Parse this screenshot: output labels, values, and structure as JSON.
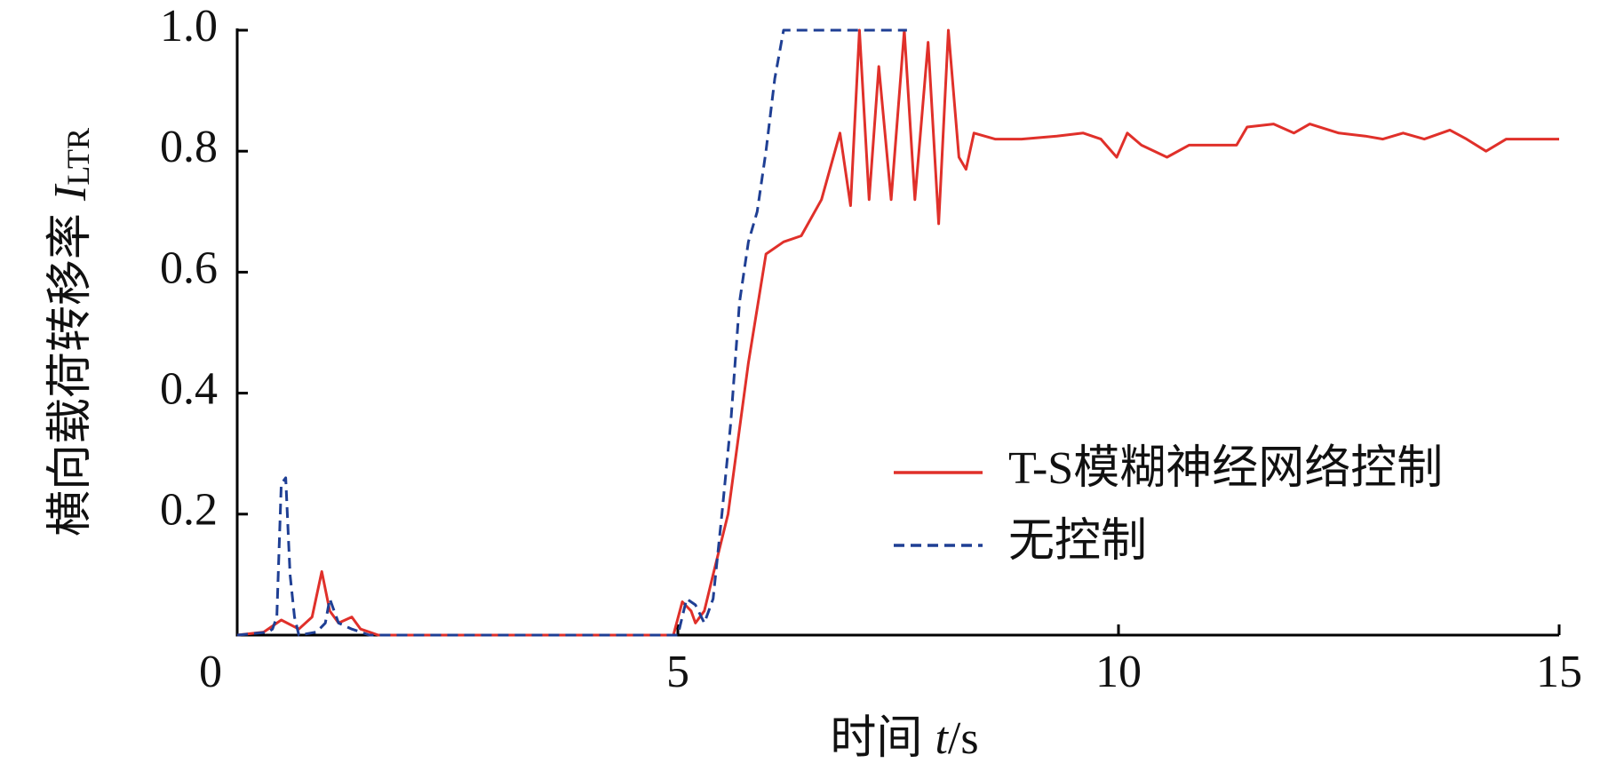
{
  "chart_data": {
    "type": "line",
    "ylabel": "横向载荷转移率",
    "ylabel_symbol": "I",
    "ylabel_subscript": "LTR",
    "xlabel": "时间",
    "xlabel_symbol": "t",
    "xlabel_unit": "/s",
    "xlim": [
      0,
      15
    ],
    "ylim": [
      0,
      1
    ],
    "xticks": [
      0,
      5,
      10,
      15
    ],
    "yticks": [
      0.2,
      0.4,
      0.6,
      0.8,
      {
        "value": 1,
        "label": "1.0"
      }
    ],
    "legend": "lower right",
    "series": [
      {
        "name": "T-S模糊神经网络控制",
        "color": "#e0302a",
        "dash": "solid",
        "x": [
          0,
          0.3,
          0.5,
          0.7,
          0.85,
          0.96,
          1.05,
          1.15,
          1.3,
          1.4,
          1.5,
          1.6,
          2,
          3,
          4,
          4.95,
          5.05,
          5.15,
          5.2,
          5.3,
          5.4,
          5.57,
          5.8,
          6.0,
          6.2,
          6.4,
          6.63,
          6.84,
          6.96,
          7.06,
          7.17,
          7.28,
          7.42,
          7.57,
          7.69,
          7.84,
          7.96,
          8.07,
          8.19,
          8.27,
          8.36,
          8.6,
          8.9,
          9.3,
          9.6,
          9.8,
          9.98,
          10.1,
          10.26,
          10.55,
          10.8,
          11.0,
          11.34,
          11.46,
          11.76,
          11.99,
          12.17,
          12.5,
          12.8,
          13.0,
          13.23,
          13.47,
          13.76,
          13.95,
          14.17,
          14.4,
          14.7,
          15
        ],
        "values": [
          0,
          0.005,
          0.025,
          0.01,
          0.03,
          0.105,
          0.04,
          0.02,
          0.03,
          0.01,
          0.005,
          0,
          0,
          0,
          0,
          0,
          0.055,
          0.04,
          0.02,
          0.04,
          0.1,
          0.2,
          0.45,
          0.63,
          0.65,
          0.66,
          0.72,
          0.83,
          0.71,
          1.0,
          0.72,
          0.94,
          0.72,
          1.0,
          0.72,
          0.98,
          0.68,
          1.0,
          0.79,
          0.77,
          0.83,
          0.82,
          0.82,
          0.825,
          0.83,
          0.82,
          0.79,
          0.83,
          0.81,
          0.79,
          0.81,
          0.81,
          0.81,
          0.84,
          0.845,
          0.83,
          0.845,
          0.83,
          0.825,
          0.82,
          0.83,
          0.82,
          0.835,
          0.82,
          0.8,
          0.82,
          0.82,
          0.82
        ]
      },
      {
        "name": "无控制",
        "color": "#1f3f94",
        "dash": "dashed",
        "x": [
          0,
          0.35,
          0.4,
          0.45,
          0.5,
          0.55,
          0.6,
          0.65,
          0.7,
          0.9,
          1.0,
          1.05,
          1.1,
          1.15,
          1.3,
          1.5,
          5.0,
          5.1,
          5.2,
          5.3,
          5.4,
          5.5,
          5.6,
          5.7,
          5.8,
          5.9,
          6.0,
          6.1,
          6.2,
          7.6
        ],
        "values": [
          0,
          0.005,
          0.01,
          0.03,
          0.25,
          0.26,
          0.1,
          0.03,
          0,
          0.005,
          0.02,
          0.06,
          0.04,
          0.02,
          0.01,
          0,
          0,
          0.06,
          0.05,
          0.02,
          0.06,
          0.2,
          0.35,
          0.55,
          0.65,
          0.7,
          0.8,
          0.92,
          1.0,
          1.0
        ]
      }
    ]
  }
}
